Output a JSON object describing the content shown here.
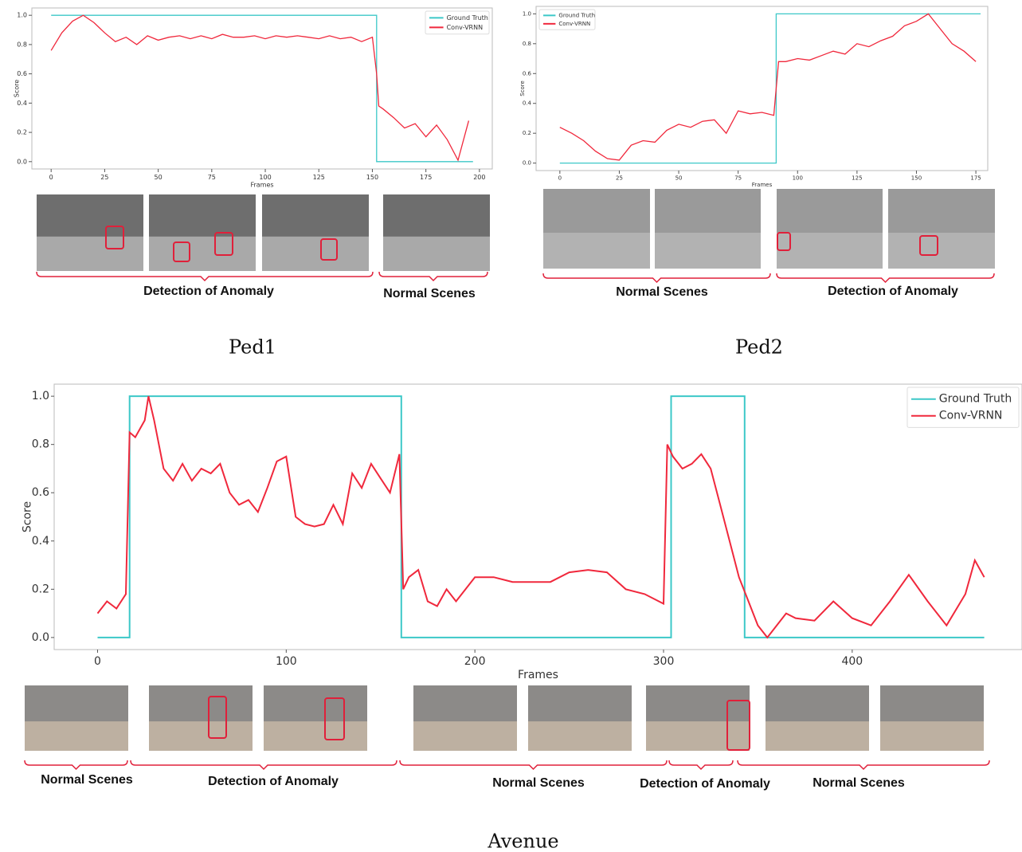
{
  "chart_data": [
    {
      "type": "line",
      "caption": "Ped1",
      "xlabel": "Frames",
      "ylabel": "Score",
      "legend": "upper right",
      "xlim": [
        -9,
        206
      ],
      "ylim": [
        -0.05,
        1.05
      ],
      "xticks": [
        0,
        25,
        50,
        75,
        100,
        125,
        150,
        175,
        200
      ],
      "yticks": [
        {
          "value": 0,
          "label": "0.0"
        },
        0.2,
        0.4,
        0.6,
        0.8,
        {
          "value": 1,
          "label": "1.0"
        }
      ],
      "series": [
        {
          "name": "Ground Truth",
          "color": "#3cc8c8",
          "x": [
            0,
            152,
            152,
            197
          ],
          "values": [
            1,
            1,
            0,
            0
          ]
        },
        {
          "name": "Conv-VRNN",
          "color": "#f0283c",
          "x": [
            0,
            5,
            10,
            15,
            20,
            25,
            30,
            35,
            40,
            45,
            50,
            55,
            60,
            65,
            70,
            75,
            80,
            85,
            90,
            95,
            100,
            105,
            110,
            115,
            120,
            125,
            130,
            135,
            140,
            145,
            150,
            152,
            153,
            155,
            160,
            165,
            170,
            175,
            180,
            185,
            190,
            195
          ],
          "values": [
            0.76,
            0.88,
            0.96,
            1.0,
            0.95,
            0.88,
            0.82,
            0.85,
            0.8,
            0.86,
            0.83,
            0.85,
            0.86,
            0.84,
            0.86,
            0.84,
            0.87,
            0.85,
            0.85,
            0.86,
            0.84,
            0.86,
            0.85,
            0.86,
            0.85,
            0.84,
            0.86,
            0.84,
            0.85,
            0.82,
            0.85,
            0.6,
            0.38,
            0.36,
            0.3,
            0.23,
            0.26,
            0.17,
            0.25,
            0.15,
            0.01,
            0.28
          ]
        }
      ],
      "annotations": [
        "Detection of Anomaly",
        "Normal Scenes"
      ]
    },
    {
      "type": "line",
      "caption": "Ped2",
      "xlabel": "Frames",
      "ylabel": "Score",
      "legend": "upper left",
      "xlim": [
        -10,
        180
      ],
      "ylim": [
        -0.05,
        1.05
      ],
      "xticks": [
        0,
        25,
        50,
        75,
        100,
        125,
        150,
        175
      ],
      "yticks": [
        {
          "value": 0,
          "label": "0.0"
        },
        0.2,
        0.4,
        0.6,
        0.8,
        {
          "value": 1,
          "label": "1.0"
        }
      ],
      "series": [
        {
          "name": "Ground Truth",
          "color": "#3cc8c8",
          "x": [
            0,
            91,
            91,
            177
          ],
          "values": [
            0,
            0,
            1,
            1
          ]
        },
        {
          "name": "Conv-VRNN",
          "color": "#f0283c",
          "x": [
            0,
            5,
            10,
            15,
            20,
            25,
            30,
            35,
            40,
            45,
            50,
            55,
            60,
            65,
            70,
            75,
            80,
            85,
            90,
            92,
            95,
            100,
            105,
            110,
            115,
            120,
            125,
            130,
            135,
            140,
            145,
            150,
            155,
            160,
            165,
            170,
            175
          ],
          "values": [
            0.24,
            0.2,
            0.15,
            0.08,
            0.03,
            0.02,
            0.12,
            0.15,
            0.14,
            0.22,
            0.26,
            0.24,
            0.28,
            0.29,
            0.2,
            0.35,
            0.33,
            0.34,
            0.32,
            0.68,
            0.68,
            0.7,
            0.69,
            0.72,
            0.75,
            0.73,
            0.8,
            0.78,
            0.82,
            0.85,
            0.92,
            0.95,
            1.0,
            0.9,
            0.8,
            0.75,
            0.68
          ]
        }
      ],
      "annotations": [
        "Normal Scenes",
        "Detection of Anomaly"
      ]
    },
    {
      "type": "line",
      "caption": "Avenue",
      "xlabel": "Frames",
      "ylabel": "Score",
      "legend": "upper right",
      "xlim": [
        -23,
        490
      ],
      "ylim": [
        -0.05,
        1.05
      ],
      "xticks": [
        0,
        100,
        200,
        300,
        400
      ],
      "yticks": [
        {
          "value": 0,
          "label": "0.0"
        },
        0.2,
        0.4,
        0.6,
        0.8,
        {
          "value": 1,
          "label": "1.0"
        }
      ],
      "series": [
        {
          "name": "Ground Truth",
          "color": "#3cc8c8",
          "x": [
            0,
            17,
            17,
            161,
            161,
            304,
            304,
            343,
            343,
            470
          ],
          "values": [
            0,
            0,
            1,
            1,
            0,
            0,
            1,
            1,
            0,
            0
          ]
        },
        {
          "name": "Conv-VRNN",
          "color": "#f0283c",
          "x": [
            0,
            5,
            10,
            15,
            17,
            20,
            25,
            27,
            30,
            35,
            40,
            45,
            50,
            55,
            60,
            65,
            70,
            75,
            80,
            85,
            90,
            95,
            100,
            105,
            110,
            115,
            120,
            125,
            130,
            135,
            140,
            145,
            150,
            155,
            160,
            162,
            165,
            170,
            175,
            180,
            185,
            190,
            200,
            210,
            220,
            230,
            240,
            250,
            260,
            270,
            280,
            290,
            300,
            302,
            305,
            310,
            315,
            320,
            325,
            330,
            335,
            340,
            345,
            350,
            355,
            360,
            365,
            370,
            380,
            390,
            400,
            410,
            420,
            430,
            440,
            450,
            460,
            465,
            470
          ],
          "values": [
            0.1,
            0.15,
            0.12,
            0.18,
            0.85,
            0.83,
            0.9,
            1.0,
            0.9,
            0.7,
            0.65,
            0.72,
            0.65,
            0.7,
            0.68,
            0.72,
            0.6,
            0.55,
            0.57,
            0.52,
            0.62,
            0.73,
            0.75,
            0.5,
            0.47,
            0.46,
            0.47,
            0.55,
            0.47,
            0.68,
            0.62,
            0.72,
            0.66,
            0.6,
            0.76,
            0.2,
            0.25,
            0.28,
            0.15,
            0.13,
            0.2,
            0.15,
            0.25,
            0.25,
            0.23,
            0.23,
            0.23,
            0.27,
            0.28,
            0.27,
            0.2,
            0.18,
            0.14,
            0.8,
            0.75,
            0.7,
            0.72,
            0.76,
            0.7,
            0.55,
            0.4,
            0.25,
            0.15,
            0.05,
            0.0,
            0.05,
            0.1,
            0.08,
            0.07,
            0.15,
            0.08,
            0.05,
            0.15,
            0.26,
            0.15,
            0.05,
            0.18,
            0.32,
            0.25
          ]
        }
      ],
      "annotations": [
        "Normal Scenes",
        "Detection of Anomaly",
        "Normal Scenes",
        "Detection of Anomaly",
        "Normal Scenes"
      ]
    }
  ]
}
